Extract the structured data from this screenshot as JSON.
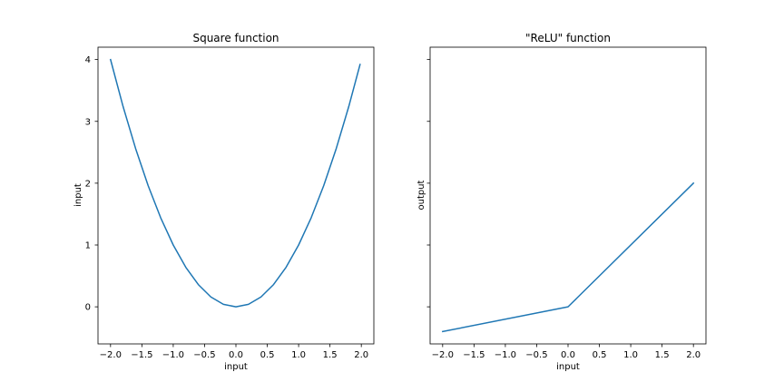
{
  "figure": {
    "background": "#ffffff"
  },
  "chart_data": [
    {
      "type": "line",
      "title": "Square function",
      "xlabel": "input",
      "ylabel": "input",
      "xlim": [
        -2.2,
        2.2
      ],
      "ylim": [
        -0.6,
        4.2
      ],
      "xticks": [
        -2.0,
        -1.5,
        -1.0,
        -0.5,
        0.0,
        0.5,
        1.0,
        1.5,
        2.0
      ],
      "xtick_labels": [
        "−2.0",
        "−1.5",
        "−1.0",
        "−0.5",
        "0.0",
        "0.5",
        "1.0",
        "1.5",
        "2.0"
      ],
      "yticks": [
        0,
        1,
        2,
        3,
        4
      ],
      "ytick_labels": [
        "0",
        "1",
        "2",
        "3",
        "4"
      ],
      "grid": false,
      "series": [
        {
          "color": "#1f77b4",
          "x": [
            -2.0,
            -1.8,
            -1.6,
            -1.4,
            -1.2,
            -1.0,
            -0.8,
            -0.6,
            -0.4,
            -0.2,
            0.0,
            0.2,
            0.4,
            0.6,
            0.8,
            1.0,
            1.2,
            1.4,
            1.6,
            1.8,
            1.98
          ],
          "y": [
            4.0,
            3.24,
            2.56,
            1.96,
            1.44,
            1.0,
            0.64,
            0.36,
            0.16,
            0.04,
            0.0,
            0.04,
            0.16,
            0.36,
            0.64,
            1.0,
            1.44,
            1.96,
            2.56,
            3.24,
            3.92
          ]
        }
      ]
    },
    {
      "type": "line",
      "title": "\"ReLU\" function",
      "xlabel": "input",
      "ylabel": "output",
      "xlim": [
        -2.2,
        2.2
      ],
      "ylim": [
        -0.6,
        4.2
      ],
      "xticks": [
        -2.0,
        -1.5,
        -1.0,
        -0.5,
        0.0,
        0.5,
        1.0,
        1.5,
        2.0
      ],
      "xtick_labels": [
        "−2.0",
        "−1.5",
        "−1.0",
        "−0.5",
        "0.0",
        "0.5",
        "1.0",
        "1.5",
        "2.0"
      ],
      "yticks": [
        0,
        1,
        2,
        3,
        4
      ],
      "ytick_labels": [],
      "grid": false,
      "series": [
        {
          "color": "#1f77b4",
          "x": [
            -2.0,
            0.0,
            2.0
          ],
          "y": [
            -0.4,
            0.0,
            2.0
          ]
        }
      ]
    }
  ]
}
